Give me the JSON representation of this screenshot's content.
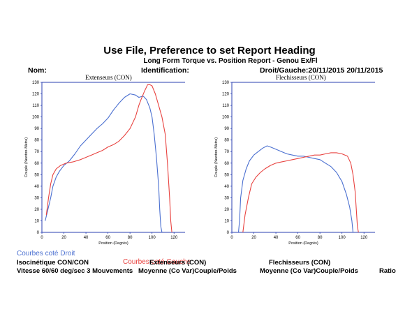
{
  "header": {
    "title": "Use File, Preference to set Report Heading",
    "subtitle": "Long Form Torque vs. Position Report - Genou Ex/Fl",
    "nom_label": "Nom:",
    "identification_label": "Identification:",
    "side_dates": "Droit/Gauche:20/11/2015 20/11/2015"
  },
  "footer": {
    "legend_droit": "Courbes coté Droit",
    "legend_gauche": "Courbes coté Gauche",
    "left_line1": "Isocinétique CON/CON",
    "left_line2": "Vitesse 60/60 deg/sec 3 Mouvements",
    "mid_line1": "Extenseurs (CON)",
    "mid_line2": "Moyenne (Co Var)Couple/Poids",
    "right_line1": "Flechisseurs (CON)",
    "right_line2": "Moyenne (Co Var)Couple/Poids",
    "ratio_label": "Ratio"
  },
  "colors": {
    "droit": "#4a6fd0",
    "gauche": "#e8423f",
    "frame": "#2a3fb0"
  },
  "chart_data": [
    {
      "type": "line",
      "title": "Extenseurs (CON)",
      "xlabel": "Position (Degrés)",
      "ylabel": "Couple (Newton-Mètre)",
      "xlim": [
        0,
        130
      ],
      "ylim": [
        0,
        130
      ],
      "x_ticks": [
        0,
        20,
        40,
        60,
        80,
        100,
        120
      ],
      "y_ticks": [
        0,
        10,
        20,
        30,
        40,
        50,
        60,
        70,
        80,
        90,
        100,
        110,
        120,
        130
      ],
      "grid": false,
      "series": [
        {
          "name": "Courbes coté Droit",
          "color": "#4a6fd0",
          "points": [
            [
              3,
              10
            ],
            [
              5,
              18
            ],
            [
              8,
              30
            ],
            [
              10,
              40
            ],
            [
              13,
              48
            ],
            [
              16,
              53
            ],
            [
              20,
              58
            ],
            [
              25,
              62
            ],
            [
              30,
              68
            ],
            [
              35,
              75
            ],
            [
              40,
              80
            ],
            [
              45,
              85
            ],
            [
              50,
              90
            ],
            [
              55,
              94
            ],
            [
              60,
              99
            ],
            [
              65,
              106
            ],
            [
              70,
              112
            ],
            [
              75,
              117
            ],
            [
              80,
              120
            ],
            [
              85,
              119
            ],
            [
              88,
              117
            ],
            [
              92,
              118
            ],
            [
              95,
              115
            ],
            [
              98,
              108
            ],
            [
              100,
              100
            ],
            [
              102,
              85
            ],
            [
              104,
              65
            ],
            [
              106,
              40
            ],
            [
              107,
              20
            ],
            [
              108,
              5
            ],
            [
              109,
              0
            ]
          ]
        },
        {
          "name": "Courbes coté Gauche",
          "color": "#e8423f",
          "points": [
            [
              4,
              15
            ],
            [
              6,
              30
            ],
            [
              8,
              42
            ],
            [
              10,
              50
            ],
            [
              13,
              55
            ],
            [
              17,
              58
            ],
            [
              22,
              60
            ],
            [
              28,
              61
            ],
            [
              35,
              63
            ],
            [
              40,
              65
            ],
            [
              45,
              67
            ],
            [
              50,
              69
            ],
            [
              55,
              71
            ],
            [
              60,
              74
            ],
            [
              65,
              76
            ],
            [
              70,
              79
            ],
            [
              75,
              84
            ],
            [
              80,
              90
            ],
            [
              85,
              100
            ],
            [
              88,
              110
            ],
            [
              90,
              115
            ],
            [
              93,
              122
            ],
            [
              96,
              128
            ],
            [
              98,
              128
            ],
            [
              100,
              127
            ],
            [
              103,
              120
            ],
            [
              106,
              110
            ],
            [
              109,
              100
            ],
            [
              112,
              85
            ],
            [
              114,
              60
            ],
            [
              116,
              30
            ],
            [
              117,
              10
            ],
            [
              118,
              0
            ]
          ]
        }
      ]
    },
    {
      "type": "line",
      "title": "Flechisseurs (CON)",
      "xlabel": "Position (Degrés)",
      "ylabel": "Couple (Newton-Mètre)",
      "xlim": [
        0,
        130
      ],
      "ylim": [
        0,
        130
      ],
      "x_ticks": [
        0,
        20,
        40,
        60,
        80,
        100,
        120
      ],
      "y_ticks": [
        0,
        10,
        20,
        30,
        40,
        50,
        60,
        70,
        80,
        90,
        100,
        110,
        120,
        130
      ],
      "grid": false,
      "series": [
        {
          "name": "Courbes coté Droit",
          "color": "#4a6fd0",
          "points": [
            [
              6,
              0
            ],
            [
              7,
              10
            ],
            [
              8,
              30
            ],
            [
              10,
              45
            ],
            [
              13,
              55
            ],
            [
              16,
              62
            ],
            [
              20,
              67
            ],
            [
              24,
              70
            ],
            [
              28,
              73
            ],
            [
              32,
              75
            ],
            [
              35,
              74
            ],
            [
              40,
              72
            ],
            [
              45,
              70
            ],
            [
              50,
              68
            ],
            [
              55,
              67
            ],
            [
              60,
              66
            ],
            [
              65,
              66
            ],
            [
              70,
              65
            ],
            [
              75,
              64
            ],
            [
              80,
              63
            ],
            [
              85,
              60
            ],
            [
              90,
              57
            ],
            [
              95,
              52
            ],
            [
              100,
              44
            ],
            [
              104,
              33
            ],
            [
              107,
              22
            ],
            [
              109,
              10
            ],
            [
              110,
              0
            ]
          ]
        },
        {
          "name": "Courbes coté Gauche",
          "color": "#e8423f",
          "points": [
            [
              10,
              0
            ],
            [
              12,
              15
            ],
            [
              15,
              30
            ],
            [
              18,
              42
            ],
            [
              22,
              48
            ],
            [
              26,
              52
            ],
            [
              30,
              55
            ],
            [
              35,
              58
            ],
            [
              40,
              60
            ],
            [
              45,
              61
            ],
            [
              50,
              62
            ],
            [
              55,
              63
            ],
            [
              60,
              64
            ],
            [
              65,
              65
            ],
            [
              70,
              66
            ],
            [
              75,
              67
            ],
            [
              80,
              67
            ],
            [
              85,
              68
            ],
            [
              90,
              69
            ],
            [
              95,
              69
            ],
            [
              100,
              68
            ],
            [
              105,
              66
            ],
            [
              108,
              60
            ],
            [
              110,
              50
            ],
            [
              112,
              35
            ],
            [
              113,
              20
            ],
            [
              114,
              5
            ],
            [
              115,
              0
            ]
          ]
        }
      ]
    }
  ]
}
